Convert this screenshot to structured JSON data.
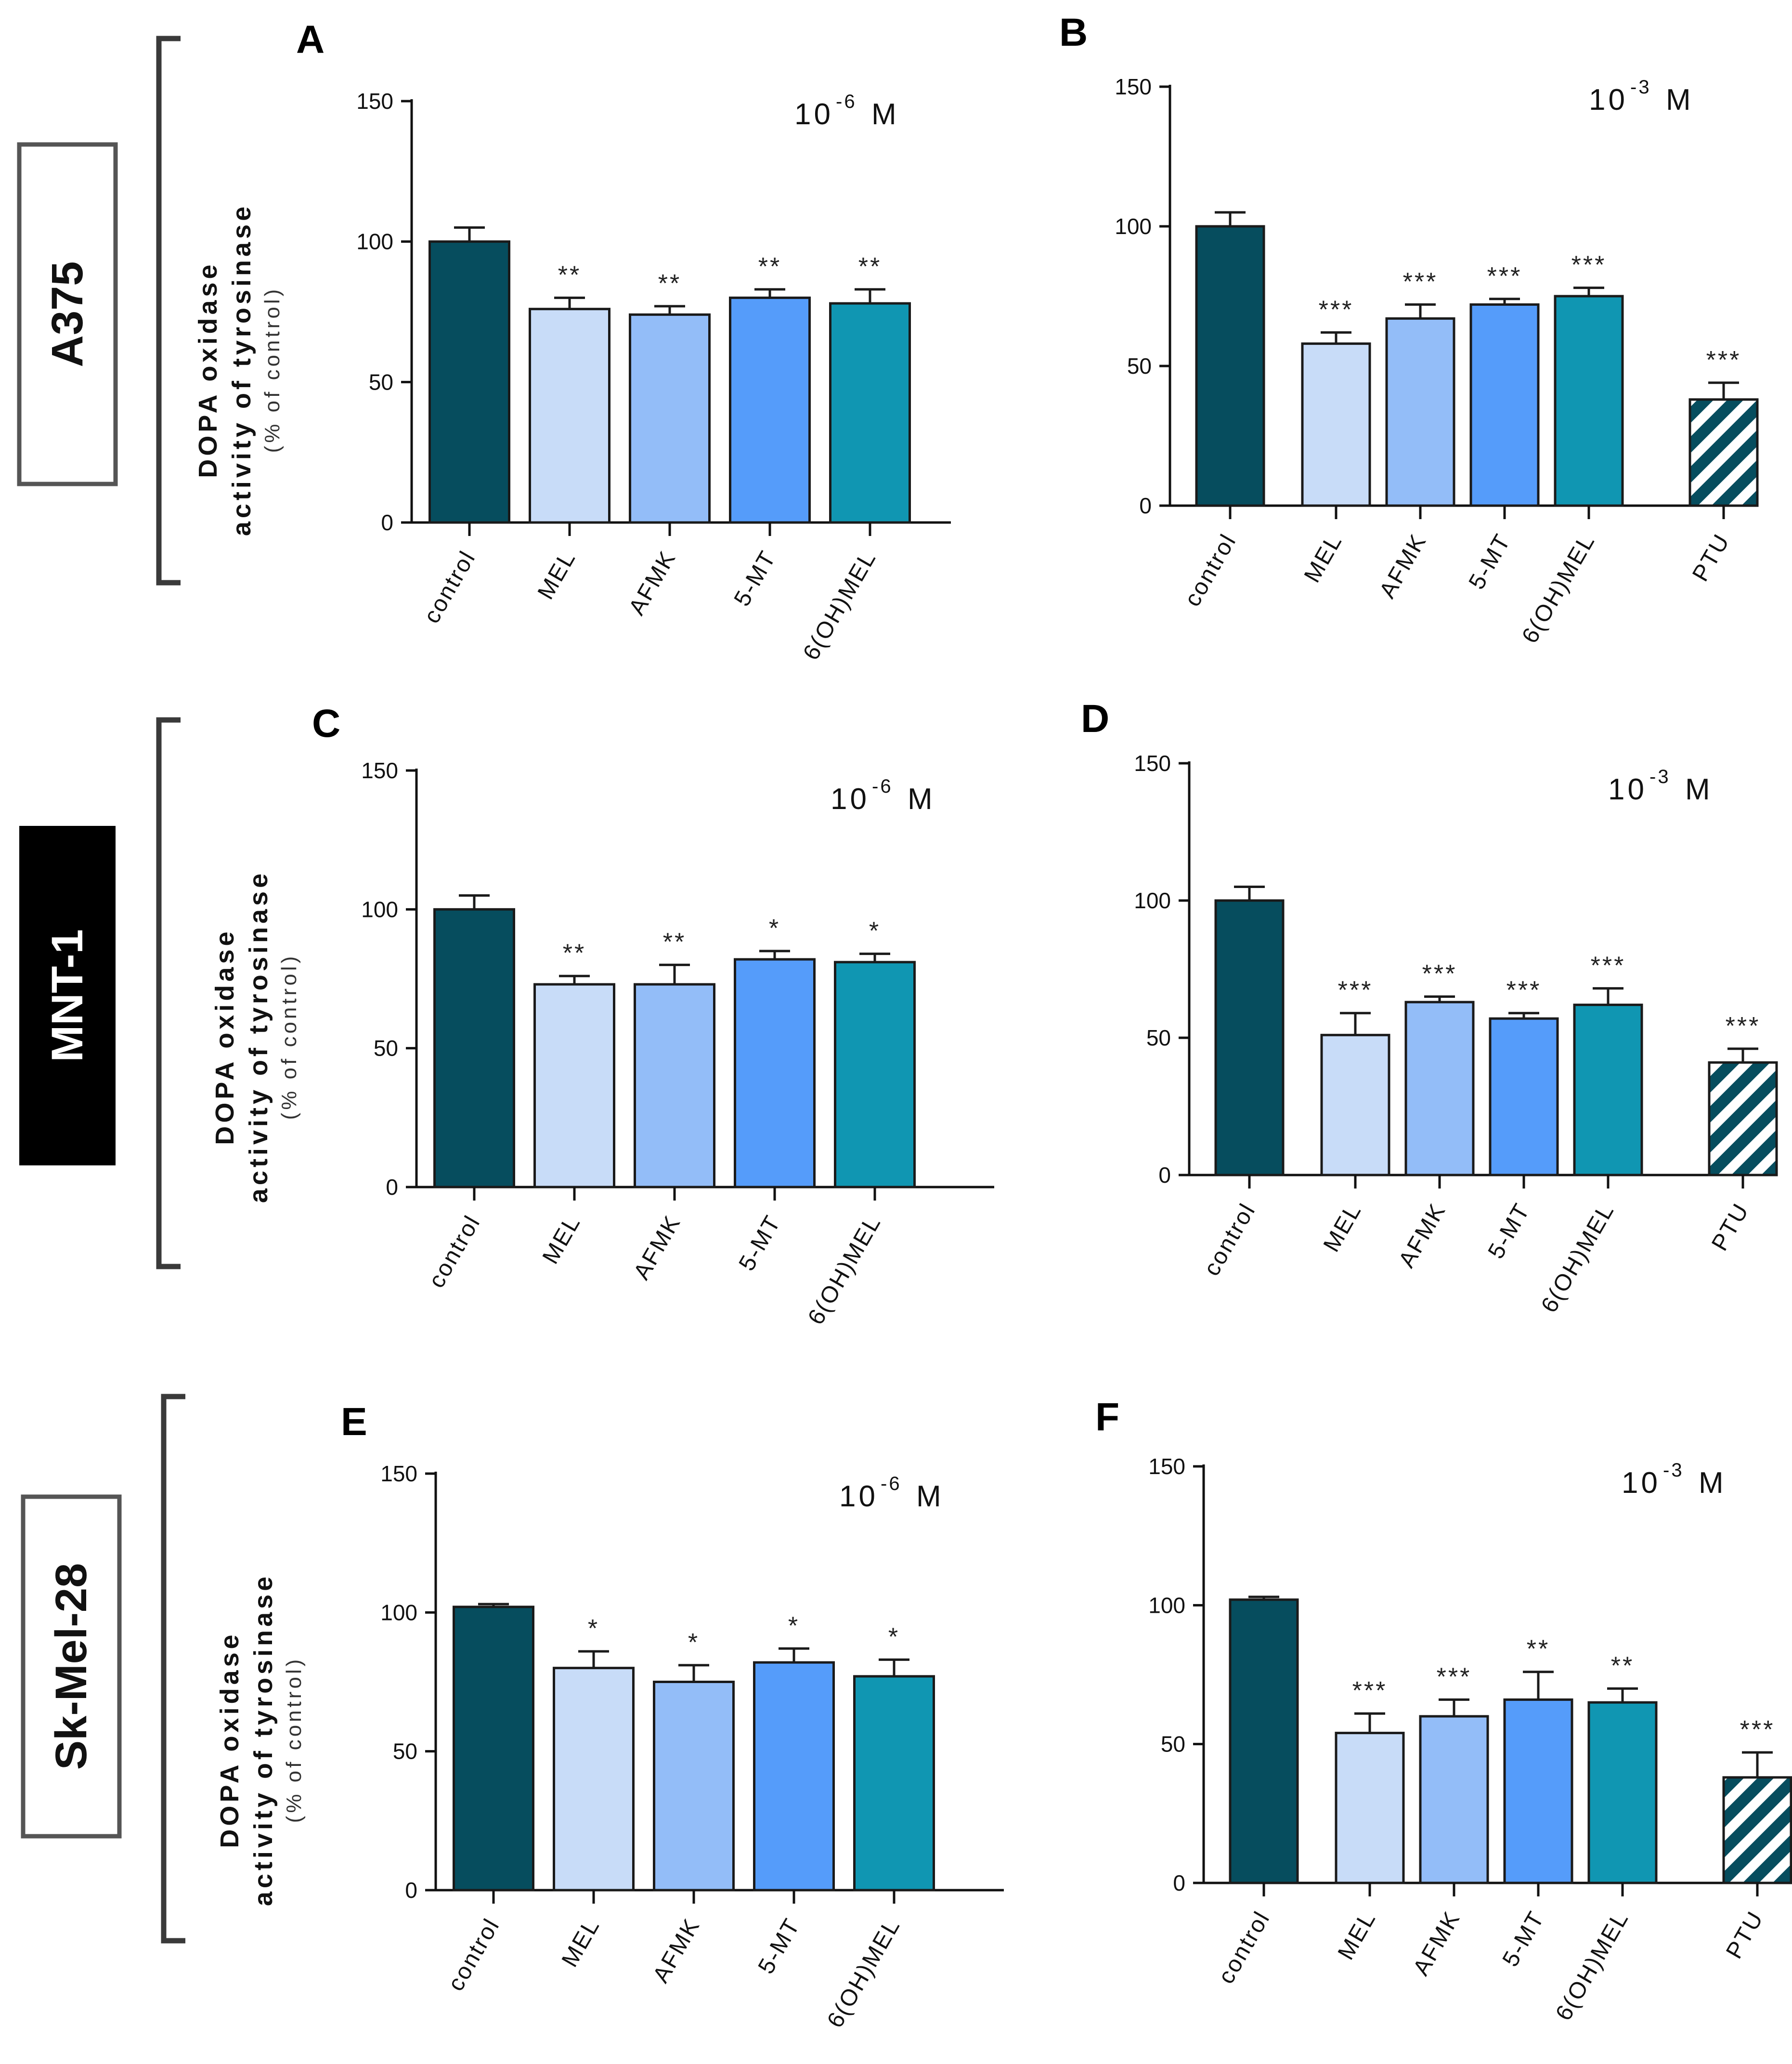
{
  "figure": {
    "y_label_line1": "DOPA oxidase",
    "y_label_line2": "activity of tyrosinase",
    "y_label_line3": "(% of control)"
  },
  "colors": {
    "control": "#064d5e",
    "MEL": "#c8dcf8",
    "AFMK": "#93bdf8",
    "5-MT": "#559cfa",
    "6(OH)MEL": "#1096b2",
    "PTU_stripe": "#064d5e"
  },
  "rows": [
    {
      "cell_line": "A375",
      "label_style": "outlined"
    },
    {
      "cell_line": "MNT-1",
      "label_style": "filled"
    },
    {
      "cell_line": "Sk-Mel-28",
      "label_style": "outlined"
    }
  ],
  "chart_data": [
    {
      "panel": "A",
      "type": "bar",
      "concentration": "10",
      "exponent": "-6",
      "unit": "M",
      "categories": [
        "control",
        "MEL",
        "AFMK",
        "5-MT",
        "6(OH)MEL"
      ],
      "values": [
        100,
        76,
        74,
        80,
        78
      ],
      "errors": [
        5,
        4,
        3,
        3,
        5
      ],
      "significance": [
        "",
        "**",
        "**",
        "**",
        "**"
      ],
      "ylim": [
        0,
        150
      ],
      "yticks": [
        "0",
        "50",
        "100",
        "150"
      ]
    },
    {
      "panel": "B",
      "type": "bar",
      "concentration": "10",
      "exponent": "-3",
      "unit": "M",
      "categories": [
        "control",
        "MEL",
        "AFMK",
        "5-MT",
        "6(OH)MEL",
        "PTU"
      ],
      "values": [
        100,
        58,
        67,
        72,
        75,
        38
      ],
      "errors": [
        5,
        4,
        5,
        2,
        3,
        6
      ],
      "significance": [
        "",
        "***",
        "***",
        "***",
        "***",
        "***"
      ],
      "ylim": [
        0,
        150
      ],
      "yticks": [
        "0",
        "50",
        "100",
        "150"
      ]
    },
    {
      "panel": "C",
      "type": "bar",
      "concentration": "10",
      "exponent": "-6",
      "unit": "M",
      "categories": [
        "control",
        "MEL",
        "AFMK",
        "5-MT",
        "6(OH)MEL"
      ],
      "values": [
        100,
        73,
        73,
        82,
        81
      ],
      "errors": [
        5,
        3,
        7,
        3,
        3
      ],
      "significance": [
        "",
        "**",
        "**",
        "*",
        "*"
      ],
      "ylim": [
        0,
        150
      ],
      "yticks": [
        "0",
        "50",
        "100",
        "150"
      ]
    },
    {
      "panel": "D",
      "type": "bar",
      "concentration": "10",
      "exponent": "-3",
      "unit": "M",
      "categories": [
        "control",
        "MEL",
        "AFMK",
        "5-MT",
        "6(OH)MEL",
        "PTU"
      ],
      "values": [
        100,
        51,
        63,
        57,
        62,
        41
      ],
      "errors": [
        5,
        8,
        2,
        2,
        6,
        5
      ],
      "significance": [
        "",
        "***",
        "***",
        "***",
        "***",
        "***"
      ],
      "ylim": [
        0,
        150
      ],
      "yticks": [
        "0",
        "50",
        "100",
        "150"
      ]
    },
    {
      "panel": "E",
      "type": "bar",
      "concentration": "10",
      "exponent": "-6",
      "unit": "M",
      "categories": [
        "control",
        "MEL",
        "AFMK",
        "5-MT",
        "6(OH)MEL"
      ],
      "values": [
        102,
        80,
        75,
        82,
        77
      ],
      "errors": [
        1,
        6,
        6,
        5,
        6
      ],
      "significance": [
        "",
        "*",
        "*",
        "*",
        "*"
      ],
      "ylim": [
        0,
        150
      ],
      "yticks": [
        "0",
        "50",
        "100",
        "150"
      ]
    },
    {
      "panel": "F",
      "type": "bar",
      "concentration": "10",
      "exponent": "-3",
      "unit": "M",
      "categories": [
        "control",
        "MEL",
        "AFMK",
        "5-MT",
        "6(OH)MEL",
        "PTU"
      ],
      "values": [
        102,
        54,
        60,
        66,
        65,
        38
      ],
      "errors": [
        1,
        7,
        6,
        10,
        5,
        9
      ],
      "significance": [
        "",
        "***",
        "***",
        "**",
        "**",
        "***"
      ],
      "ylim": [
        0,
        150
      ],
      "yticks": [
        "0",
        "50",
        "100",
        "150"
      ]
    }
  ]
}
